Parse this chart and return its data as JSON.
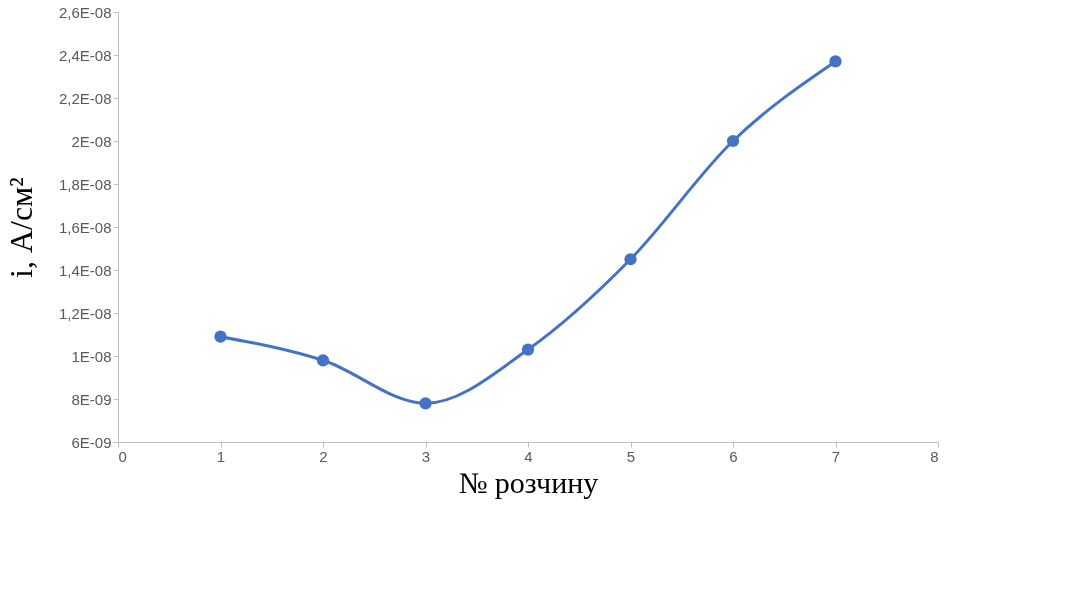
{
  "chart_data": {
    "type": "line",
    "xlabel": "№ розчину",
    "ylabel": "i, А/см²",
    "x": [
      1,
      2,
      3,
      4,
      5,
      6,
      7
    ],
    "series": [
      {
        "color": "#4472c4",
        "values": [
          1.09e-08,
          9.8e-09,
          7.8e-09,
          1.03e-08,
          1.45e-08,
          2e-08,
          2.37e-08
        ]
      }
    ],
    "xlim": [
      0,
      8
    ],
    "xticks": [
      0,
      1,
      2,
      3,
      4,
      5,
      6,
      7,
      8
    ],
    "ylim": [
      6e-09,
      2.6e-08
    ],
    "yticks": [
      {
        "value": 6e-09,
        "label": "6E-09"
      },
      {
        "value": 8e-09,
        "label": "8E-09"
      },
      {
        "value": 1e-08,
        "label": "1E-08"
      },
      {
        "value": 1.2e-08,
        "label": "1,2E-08"
      },
      {
        "value": 1.4e-08,
        "label": "1,4E-08"
      },
      {
        "value": 1.6e-08,
        "label": "1,6E-08"
      },
      {
        "value": 1.8e-08,
        "label": "1,8E-08"
      },
      {
        "value": 2e-08,
        "label": "2E-08"
      },
      {
        "value": 2.2e-08,
        "label": "2,2E-08"
      },
      {
        "value": 2.4e-08,
        "label": "2,4E-08"
      },
      {
        "value": 2.6e-08,
        "label": "2,6E-08"
      }
    ],
    "grid": false,
    "marker": "circle",
    "line_style": "solid"
  }
}
